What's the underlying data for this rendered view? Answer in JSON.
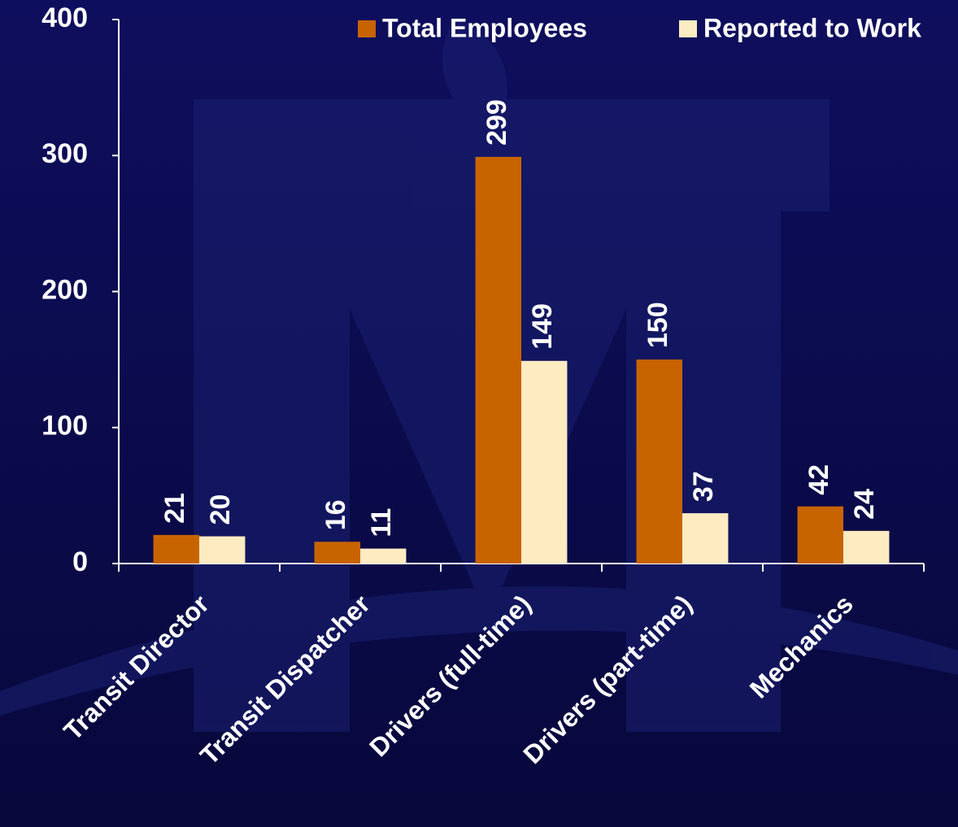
{
  "chart_data": {
    "type": "bar",
    "categories": [
      "Transit Director",
      "Transit Dispatcher",
      "Drivers (full-time)",
      "Drivers (part-time)",
      "Mechanics"
    ],
    "series": [
      {
        "name": "Total Employees",
        "color": "#c86400",
        "values": [
          21,
          16,
          299,
          150,
          42
        ]
      },
      {
        "name": "Reported to Work",
        "color": "#fdebc2",
        "values": [
          20,
          11,
          149,
          37,
          24
        ]
      }
    ],
    "ylim": [
      0,
      400
    ],
    "yticks": [
      0,
      100,
      200,
      300,
      400
    ],
    "grid": false,
    "legend": "top"
  }
}
